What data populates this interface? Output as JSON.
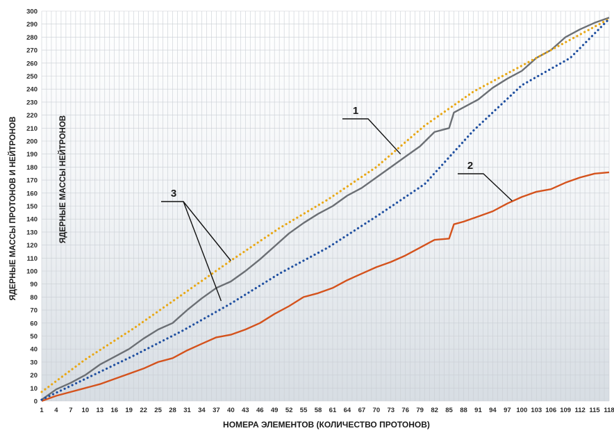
{
  "chart_data": {
    "type": "line",
    "xlabel": "НОМЕРА ЭЛЕМЕНТОВ (КОЛИЧЕСТВО ПРОТОНОВ)",
    "ylabel": "ЯДЕРНЫЕ МАССЫ ПРОТОНОВ И НЕЙТРОНОВ",
    "ylabel2": "ЯДЕРНЫЕ МАССЫ НЕЙТРОНОВ",
    "xlim": [
      1,
      118
    ],
    "ylim": [
      0,
      300
    ],
    "grid": true,
    "x_ticks": [
      1,
      4,
      7,
      10,
      13,
      16,
      19,
      22,
      25,
      28,
      31,
      34,
      37,
      40,
      43,
      46,
      49,
      52,
      55,
      58,
      61,
      64,
      67,
      70,
      73,
      76,
      79,
      82,
      85,
      88,
      91,
      94,
      97,
      100,
      103,
      106,
      109,
      112,
      115,
      118
    ],
    "y_ticks": [
      0,
      10,
      20,
      30,
      40,
      50,
      60,
      70,
      80,
      90,
      100,
      110,
      120,
      130,
      140,
      150,
      160,
      170,
      180,
      190,
      200,
      210,
      220,
      230,
      240,
      250,
      260,
      270,
      280,
      290,
      300
    ],
    "series": [
      {
        "name": "",
        "style": "solid",
        "color": "#6b6f74",
        "x": [
          1,
          4,
          7,
          10,
          13,
          16,
          19,
          22,
          25,
          28,
          31,
          34,
          37,
          40,
          43,
          46,
          49,
          52,
          55,
          58,
          61,
          64,
          67,
          70,
          73,
          76,
          79,
          82,
          85,
          86,
          88,
          91,
          94,
          97,
          100,
          103,
          106,
          109,
          112,
          115,
          118
        ],
        "y": [
          1,
          9,
          14,
          20,
          28,
          34,
          40,
          48,
          55,
          60,
          70,
          79,
          87,
          92,
          100,
          109,
          119,
          129,
          137,
          144,
          150,
          158,
          164,
          172,
          180,
          188,
          196,
          207,
          210,
          222,
          226,
          232,
          241,
          248,
          254,
          264,
          270,
          280,
          286,
          291,
          295
        ]
      },
      {
        "name": "",
        "style": "solid",
        "color": "#d4521c",
        "x": [
          1,
          4,
          7,
          10,
          13,
          16,
          19,
          22,
          25,
          28,
          31,
          34,
          37,
          40,
          43,
          46,
          49,
          52,
          55,
          58,
          61,
          64,
          67,
          70,
          73,
          76,
          79,
          82,
          85,
          86,
          88,
          91,
          94,
          97,
          100,
          103,
          106,
          109,
          112,
          115,
          118
        ],
        "y": [
          0,
          4,
          7,
          10,
          13,
          17,
          21,
          25,
          30,
          33,
          39,
          44,
          49,
          51,
          55,
          60,
          67,
          73,
          80,
          83,
          87,
          93,
          98,
          103,
          107,
          112,
          118,
          124,
          125,
          136,
          138,
          142,
          146,
          152,
          157,
          161,
          163,
          168,
          172,
          175,
          176
        ]
      },
      {
        "name": "",
        "style": "dotted",
        "color": "#e8a817",
        "x": [
          1,
          10,
          20,
          30,
          40,
          50,
          60,
          70,
          80,
          90,
          100,
          110,
          118
        ],
        "y": [
          7,
          32,
          56,
          82,
          108,
          133,
          155,
          180,
          212,
          238,
          258,
          278,
          294
        ]
      },
      {
        "name": "",
        "style": "dotted",
        "color": "#1f4fa0",
        "x": [
          1,
          10,
          20,
          30,
          40,
          50,
          60,
          70,
          80,
          90,
          100,
          110,
          118
        ],
        "y": [
          1,
          17,
          35,
          54,
          75,
          98,
          118,
          142,
          167,
          208,
          243,
          264,
          294
        ]
      }
    ],
    "annotations": [
      {
        "text": "1",
        "x": 75,
        "y": 190
      },
      {
        "text": "2",
        "x": 98,
        "y": 154
      },
      {
        "text": "3",
        "x": 40,
        "y": 108
      },
      {
        "text": "",
        "x": 38,
        "y": 77
      }
    ]
  }
}
